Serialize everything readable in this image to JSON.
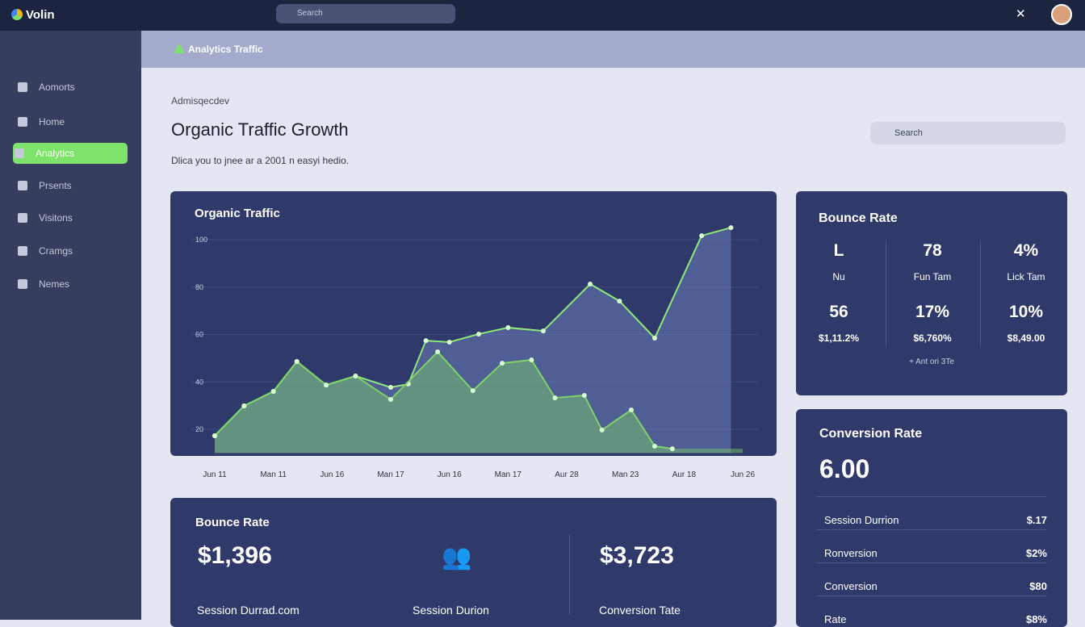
{
  "topbar": {
    "logo": "Volin",
    "search": "Search"
  },
  "sidebar": [
    "Aomorts",
    "Home",
    "Analytics",
    "Prsents",
    "Visitons",
    "Cramgs",
    "Nemes"
  ],
  "header": {
    "title": "Analytics Traffic"
  },
  "page": {
    "breadcrumb": "Admisqecdev",
    "title": "Organic Traffic Growth",
    "subtitle": "Dlica you to jnee ar a 2001 n easyi hedio.",
    "search": "Search"
  },
  "traffic_chart": {
    "type": "line",
    "title": "Organic Traffic",
    "categories": [
      "Jun 11",
      "Man 11",
      "Jun 16",
      "Man 17",
      "Jun 16",
      "Man 17",
      "Aur 28",
      "Man 23",
      "Aur 18",
      "Jun 26"
    ],
    "ylim": [
      10,
      115
    ],
    "yticks": [
      100,
      80,
      60,
      40,
      20
    ],
    "xlim": [
      0,
      9
    ],
    "series": [
      {
        "color": "#8fe87a",
        "x": [
          0.0,
          0.5,
          1.0,
          1.4,
          1.9,
          2.4,
          3.0,
          3.3,
          3.6,
          4.0,
          4.5,
          5.0,
          5.6,
          6.4,
          6.9,
          7.5,
          8.3,
          8.8
        ],
        "values": [
          17.3,
          29.9,
          36.0,
          48.6,
          38.7,
          42.5,
          37.7,
          39.1,
          57.4,
          56.8,
          60.2,
          62.9,
          61.5,
          81.3,
          74.1,
          58.5,
          101.7,
          105.1
        ]
      },
      {
        "color": "#7ed36a",
        "x": [
          0.0,
          0.5,
          1.0,
          1.4,
          1.9,
          2.4,
          3.0,
          3.8,
          4.4,
          4.9,
          5.4,
          5.8,
          6.3,
          6.6,
          7.1,
          7.5,
          7.8
        ],
        "values": [
          17.3,
          29.9,
          36.0,
          48.6,
          38.7,
          42.5,
          32.6,
          52.7,
          36.3,
          47.9,
          49.3,
          33.3,
          34.3,
          19.7,
          28.2,
          12.9,
          11.8
        ]
      }
    ]
  },
  "bounce_card": {
    "title": "Bounce Rate",
    "cells": [
      [
        "L",
        "Nu"
      ],
      [
        "78",
        "Fun Tam"
      ],
      [
        "4%",
        "Lick Tam"
      ],
      [
        "56",
        "$1,11.2%"
      ],
      [
        "17%",
        "$6,760%"
      ],
      [
        "10%",
        "$8,49.00"
      ]
    ],
    "note": "+ Ant ori 3Te"
  },
  "conversion_card": {
    "title": "Conversion Rate",
    "value": "6.00",
    "rows": [
      [
        "Session Durrion",
        "$.17"
      ],
      [
        "Ronversion",
        "$2%"
      ],
      [
        "Conversion",
        "$80"
      ],
      [
        "Rate",
        "$8%"
      ]
    ]
  },
  "bottom_card": {
    "title": "Bounce Rate",
    "value1": "$1,396",
    "value2": "$3,723",
    "labels": [
      "Session Durrad.com",
      "Session Durion",
      "Conversion Tate"
    ]
  }
}
